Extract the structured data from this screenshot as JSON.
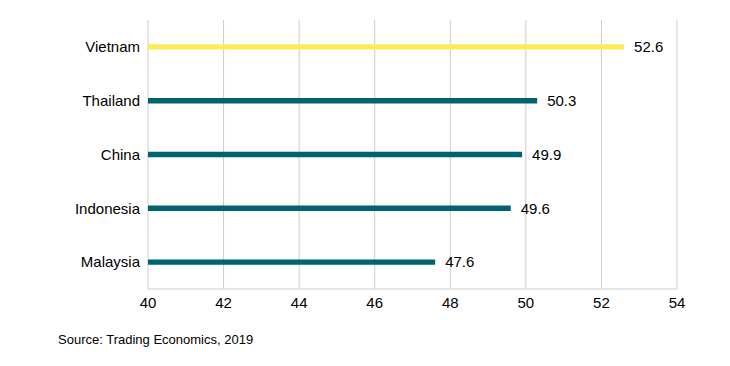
{
  "chart_data": {
    "type": "bar",
    "orientation": "horizontal",
    "categories": [
      "Vietnam",
      "Thailand",
      "China",
      "Indonesia",
      "Malaysia"
    ],
    "values": [
      52.6,
      50.3,
      49.9,
      49.6,
      47.6
    ],
    "colors": [
      "#ffeb5a",
      "#00646e",
      "#00646e",
      "#00646e",
      "#00646e"
    ],
    "xlim": [
      40,
      54
    ],
    "xticks": [
      40,
      42,
      44,
      46,
      48,
      50,
      52,
      54
    ],
    "grid": true,
    "data_labels": true,
    "annotations": [
      "Source: Trading Economics, 2019"
    ]
  }
}
